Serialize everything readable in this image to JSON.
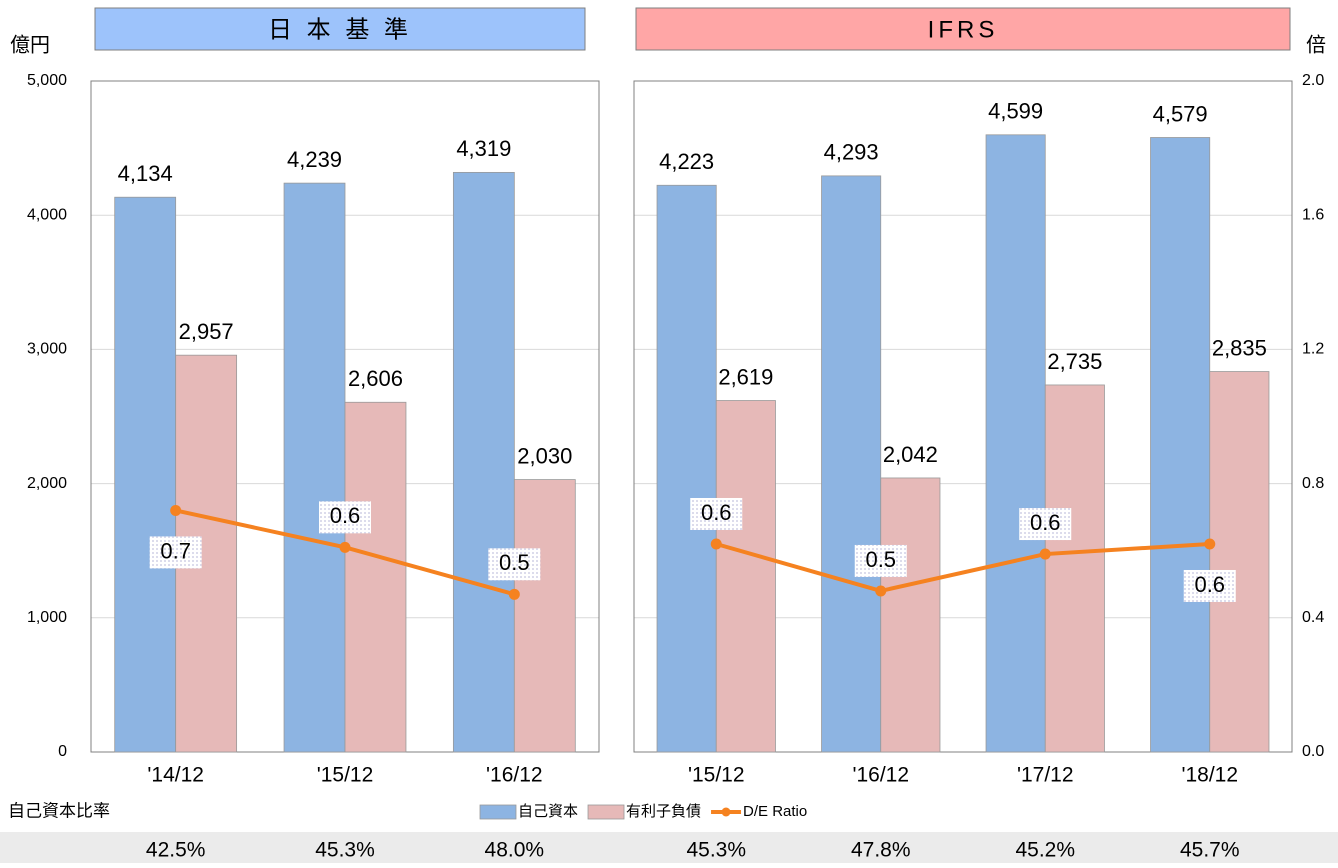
{
  "equity_ratio_label": "自己資本比率",
  "chart_data": [
    {
      "type": "bar",
      "title": "日 本 基 準",
      "ylabel": "億円",
      "categories": [
        "'14/12",
        "'15/12",
        "'16/12"
      ],
      "ylim": [
        0,
        5000
      ],
      "yticks": [
        0,
        {
          "value": 1000,
          "label": "1,000"
        },
        {
          "value": 2000,
          "label": "2,000"
        },
        {
          "value": 3000,
          "label": "3,000"
        },
        {
          "value": 4000,
          "label": "4,000"
        },
        {
          "value": 5000,
          "label": "5,000"
        }
      ],
      "y2lim": [
        0,
        2
      ],
      "grid": true,
      "legend": "bottom",
      "series": [
        {
          "name": "自己資本",
          "color": "#8db4e2",
          "values": [
            4134,
            4239,
            4319
          ],
          "value_labels": [
            "4,134",
            "4,239",
            "4,319"
          ]
        },
        {
          "name": "有利子負債",
          "color": "#e6b9b8",
          "values": [
            2957,
            2606,
            2030
          ],
          "value_labels": [
            "2,957",
            "2,606",
            "2,030"
          ]
        },
        {
          "name": "D/E Ratio",
          "type": "line",
          "axis": "y2",
          "color": "#f58220",
          "values": [
            0.72,
            0.61,
            0.47
          ],
          "value_labels": [
            "0.7",
            "0.6",
            "0.5"
          ]
        }
      ],
      "equity_ratio": [
        "42.5%",
        "45.3%",
        "48.0%"
      ]
    },
    {
      "type": "bar",
      "title": "IFRS",
      "y2label": "倍",
      "categories": [
        "'15/12",
        "'16/12",
        "'17/12",
        "'18/12"
      ],
      "ylim": [
        0,
        5000
      ],
      "y2lim": [
        0,
        2
      ],
      "y2ticks": [
        {
          "value": 0,
          "label": "0.0"
        },
        0.4,
        0.8,
        1.2,
        1.6,
        {
          "value": 2,
          "label": "2.0"
        }
      ],
      "grid": true,
      "series": [
        {
          "color": "#8db4e2",
          "values": [
            4223,
            4293,
            4599,
            4579
          ],
          "value_labels": [
            "4,223",
            "4,293",
            "4,599",
            "4,579"
          ]
        },
        {
          "color": "#e6b9b8",
          "values": [
            2619,
            2042,
            2735,
            2835
          ],
          "value_labels": [
            "2,619",
            "2,042",
            "2,735",
            "2,835"
          ]
        },
        {
          "type": "line",
          "axis": "y2",
          "color": "#f58220",
          "values": [
            0.62,
            0.48,
            0.59,
            0.62
          ],
          "value_labels": [
            "0.6",
            "0.5",
            "0.6",
            "0.6"
          ]
        }
      ],
      "equity_ratio": [
        "45.3%",
        "47.8%",
        "45.2%",
        "45.7%"
      ]
    }
  ]
}
